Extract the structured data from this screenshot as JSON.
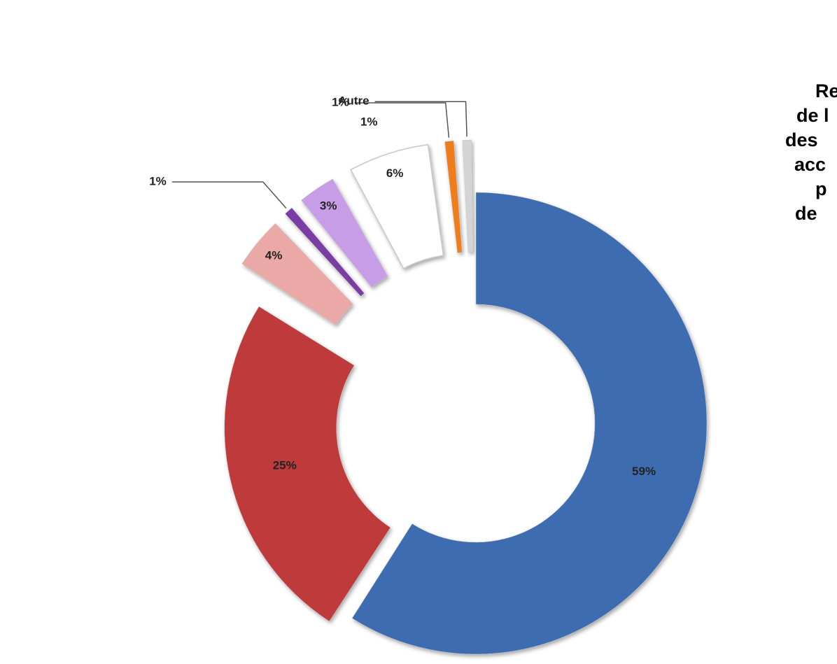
{
  "chart_data": {
    "type": "donut",
    "title_lines": [
      "Re",
      "de l",
      "des",
      "acc",
      "p",
      "de"
    ],
    "categories": [
      null,
      null,
      null,
      null,
      null,
      null,
      null,
      "Autre"
    ],
    "values": [
      59,
      25,
      4,
      1,
      3,
      6,
      1,
      1
    ],
    "value_labels": [
      "59%",
      "25%",
      "4%",
      "1%",
      "3%",
      "6%",
      "1%",
      "1%"
    ],
    "colors": [
      "#3e6db0",
      "#bf3a3a",
      "#eaa8a6",
      "#7a3ea3",
      "#c89de8",
      "#ffffff",
      "#f07d1c",
      "#d4d4d4"
    ]
  }
}
